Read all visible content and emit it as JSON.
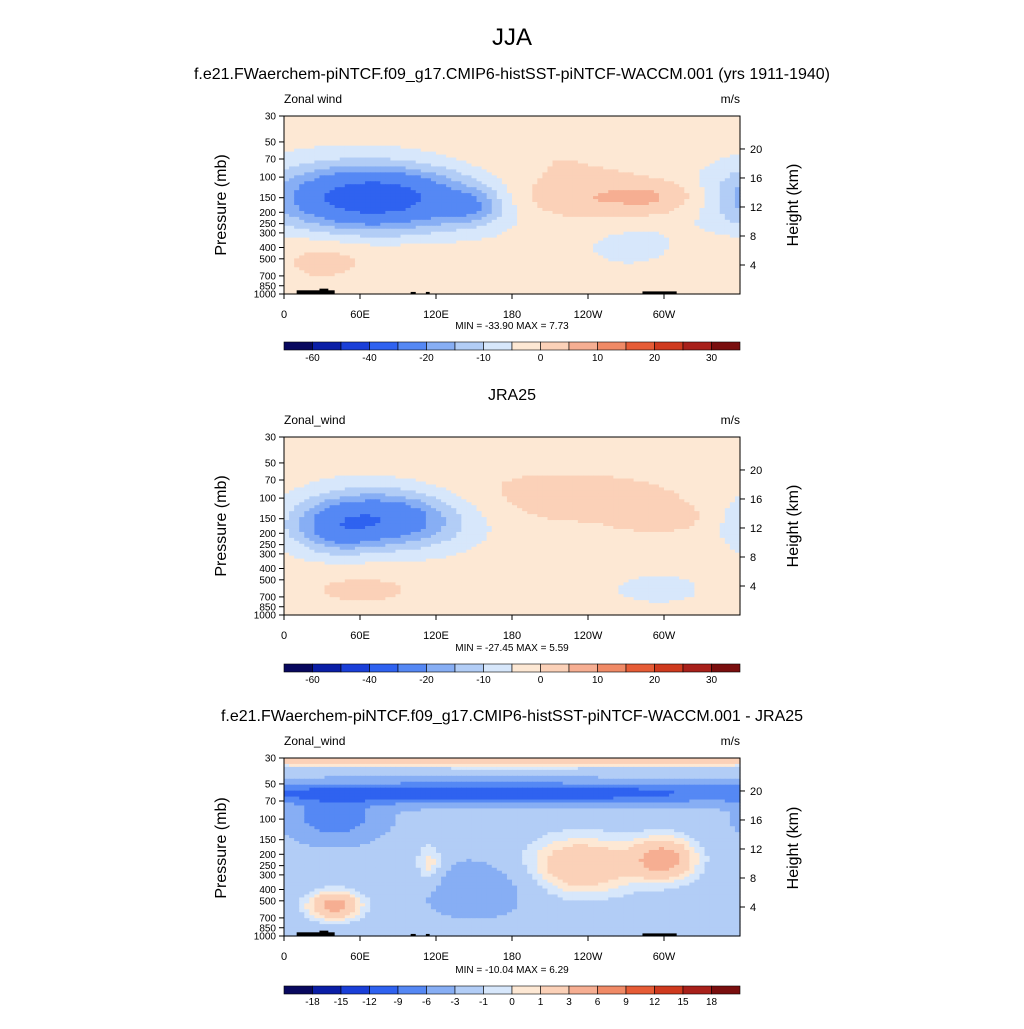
{
  "title": "JJA",
  "colors": {
    "main_scale": [
      "#08085e",
      "#0a1ea6",
      "#1a3fd8",
      "#2f62f0",
      "#5588f4",
      "#87aef4",
      "#b2cdf6",
      "#d7e7fb",
      "#fde8d4",
      "#fbd1b8",
      "#f6ae92",
      "#f08a66",
      "#e65c36",
      "#cf3a1e",
      "#a8201a",
      "#7a0e0e"
    ],
    "diff_scale": [
      "#08085e",
      "#0a1ea6",
      "#1a3fd8",
      "#2f62f0",
      "#5588f4",
      "#87aef4",
      "#b2cdf6",
      "#d7e7fb",
      "#fde8d4",
      "#fbd1b8",
      "#f6ae92",
      "#f08a66",
      "#e65c36",
      "#cf3a1e",
      "#a8201a",
      "#7a0e0e"
    ],
    "topography": "#000000"
  },
  "axes": {
    "pressure_label": "Pressure (mb)",
    "height_label": "Height (km)",
    "pressure_ticks": [
      30,
      50,
      70,
      100,
      150,
      200,
      250,
      300,
      400,
      500,
      700,
      850,
      1000
    ],
    "height_ticks": [
      4,
      8,
      12,
      16,
      20
    ],
    "lon_ticks": [
      "0",
      "60E",
      "120E",
      "180",
      "120W",
      "60W"
    ],
    "lon_tick_values": [
      0,
      60,
      120,
      180,
      240,
      300
    ],
    "lon_range": [
      0,
      360
    ],
    "p_range": [
      30,
      1000
    ],
    "p_scale": "log"
  },
  "chart_data": [
    {
      "type": "heatmap",
      "title": "f.e21.FWaerchem-piNTCF.f09_g17.CMIP6-histSST-piNTCF-WACCM.001 (yrs 1911-1940)",
      "var_label": "Zonal wind",
      "units": "m/s",
      "stats": "MIN = -33.90  MAX =   7.73",
      "colorbar_labels": [
        "-60",
        "-40",
        "-20",
        "-10",
        "0",
        "10",
        "20",
        "30"
      ],
      "features": [
        {
          "lon": 70,
          "p": 150,
          "sx": 55,
          "sy": 0.45,
          "v": -34
        },
        {
          "lon": 150,
          "p": 180,
          "sx": 18,
          "sy": 0.25,
          "v": -10
        },
        {
          "lon": 30,
          "p": 500,
          "sx": 20,
          "sy": 0.35,
          "v": 4
        },
        {
          "lon": 90,
          "p": 500,
          "sx": 40,
          "sy": 0.25,
          "v": 3
        },
        {
          "lon": 230,
          "p": 150,
          "sx": 50,
          "sy": 0.3,
          "v": 7
        },
        {
          "lon": 300,
          "p": 150,
          "sx": 30,
          "sy": 0.25,
          "v": 7
        },
        {
          "lon": 200,
          "p": 70,
          "sx": 70,
          "sy": 0.35,
          "v": 3
        },
        {
          "lon": 330,
          "p": 500,
          "sx": 30,
          "sy": 0.4,
          "v": 2
        },
        {
          "lon": 280,
          "p": 400,
          "sx": 30,
          "sy": 0.3,
          "v": -4
        }
      ],
      "bias": -3,
      "topo_segments": [
        [
          10,
          40,
          1000,
          930
        ],
        [
          28,
          35,
          930,
          900
        ],
        [
          100,
          104,
          1000,
          960
        ],
        [
          112,
          115,
          1000,
          960
        ],
        [
          283,
          310,
          1000,
          950
        ]
      ]
    },
    {
      "type": "heatmap",
      "title": "JRA25",
      "var_label": "Zonal_wind",
      "units": "m/s",
      "stats": "MIN = -27.45  MAX =   5.59",
      "colorbar_labels": [
        "-60",
        "-40",
        "-20",
        "-10",
        "0",
        "10",
        "20",
        "30"
      ],
      "features": [
        {
          "lon": 75,
          "p": 150,
          "sx": 45,
          "sy": 0.4,
          "v": -27
        },
        {
          "lon": 40,
          "p": 200,
          "sx": 20,
          "sy": 0.3,
          "v": -8
        },
        {
          "lon": 220,
          "p": 100,
          "sx": 90,
          "sy": 0.45,
          "v": 5
        },
        {
          "lon": 300,
          "p": 150,
          "sx": 25,
          "sy": 0.2,
          "v": 5
        },
        {
          "lon": 60,
          "p": 600,
          "sx": 45,
          "sy": 0.3,
          "v": 4
        },
        {
          "lon": 200,
          "p": 40,
          "sx": 120,
          "sy": 0.2,
          "v": 1
        },
        {
          "lon": 300,
          "p": 600,
          "sx": 40,
          "sy": 0.3,
          "v": -3
        }
      ],
      "bias": -3,
      "topo_segments": []
    },
    {
      "type": "heatmap",
      "title": "f.e21.FWaerchem-piNTCF.f09_g17.CMIP6-histSST-piNTCF-WACCM.001 - JRA25",
      "var_label": "Zonal_wind",
      "units": "m/s",
      "stats": "MIN = -10.04  MAX =   6.29",
      "colorbar_labels": [
        "-18",
        "-15",
        "-12",
        "-9",
        "-6",
        "-3",
        "-1",
        "0",
        "1",
        "3",
        "6",
        "9",
        "12",
        "15",
        "18"
      ],
      "features": [
        {
          "lon": 160,
          "p": 60,
          "sx": 180,
          "sy": 0.15,
          "v": -10
        },
        {
          "lon": 40,
          "p": 100,
          "sx": 25,
          "sy": 0.3,
          "v": -6
        },
        {
          "lon": 40,
          "p": 550,
          "sx": 15,
          "sy": 0.2,
          "v": 6
        },
        {
          "lon": 235,
          "p": 250,
          "sx": 30,
          "sy": 0.4,
          "v": 5
        },
        {
          "lon": 300,
          "p": 220,
          "sx": 18,
          "sy": 0.3,
          "v": 6
        },
        {
          "lon": 115,
          "p": 250,
          "sx": 8,
          "sy": 0.3,
          "v": 3
        },
        {
          "lon": 180,
          "p": 32,
          "sx": 200,
          "sy": 0.08,
          "v": 5
        },
        {
          "lon": 150,
          "p": 400,
          "sx": 30,
          "sy": 0.4,
          "v": -3
        }
      ],
      "bias": -2,
      "topo_segments": [
        [
          10,
          40,
          1000,
          930
        ],
        [
          28,
          35,
          930,
          900
        ],
        [
          100,
          104,
          1000,
          960
        ],
        [
          112,
          115,
          1000,
          960
        ],
        [
          283,
          310,
          1000,
          950
        ]
      ]
    }
  ]
}
